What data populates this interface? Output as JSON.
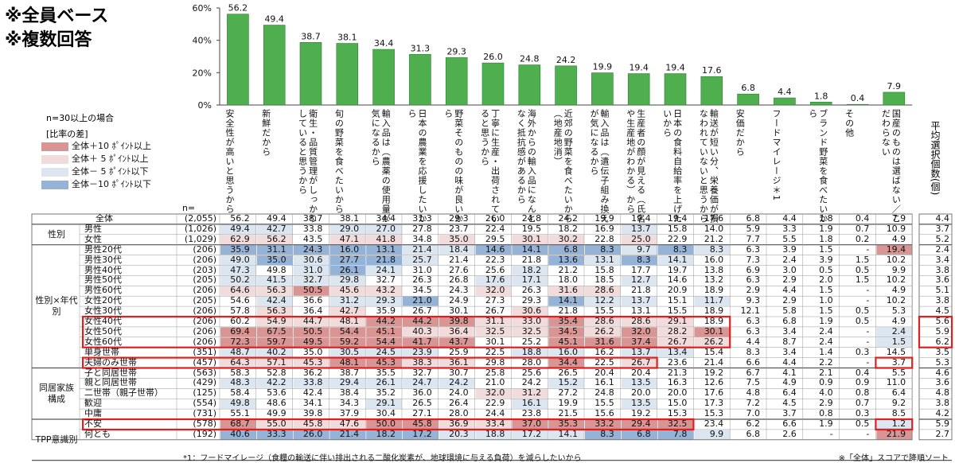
{
  "headline": [
    "※全員ベース",
    "※複数回答"
  ],
  "n_header": "n=",
  "n_limit_note": "n=30以上の場合",
  "legend": {
    "title": "[比率の差]",
    "items": [
      {
        "label": "全体＋10 ﾎﾟｲﾝﾄ以上",
        "color": "#d99594"
      },
      {
        "label": "全体＋ 5 ﾎﾟｲﾝﾄ以上",
        "color": "#f2dcdb"
      },
      {
        "label": "全体－ 5 ﾎﾟｲﾝﾄ以下",
        "color": "#dce6f1"
      },
      {
        "label": "全体－10 ﾎﾟｲﾝﾄ以下",
        "color": "#95b3d7"
      }
    ]
  },
  "avg_title": "平均選択個数(個)",
  "footnote": "*1：フードマイレージ（食糧の輸送に伴い排出される二酸化炭素が、地球環境に与える負荷）を減らしたいから",
  "sort_note": "※「全体」スコアで降順ソート",
  "colors": {
    "bar": "#4faf4f",
    "highlight_box": "#e02020"
  },
  "chart_data": {
    "type": "bar",
    "ylim": [
      0,
      60
    ],
    "yticks": [
      "0%",
      "20%",
      "40%",
      "60%"
    ],
    "categories": [
      "安全性が高いと思うから",
      "新鮮だから",
      "衛生・品質管理がしっかりしていると思うから",
      "旬の野菜を食べたいから",
      "輸入品は農薬の使用量が気になるから",
      "日本の農業を応援したいから",
      "野菜そのものの味が良いから",
      "丁寧に生産・出荷されていると思うから",
      "海外からの輸入品になんとなく抵抗感があるから",
      "近郊の野菜を食べたいから（地産地消）",
      "輸入品は遺伝子組み換えが気になるから",
      "生産者の顔が見える（氏名や生産地がわかる）から",
      "日本の食料自給率を上げたいから",
      "輸送が短い分、栄養価が損なわれていないと思うから",
      "安価だから",
      "フードマイレージ *1",
      "ブランド野菜を食べたいから",
      "その他",
      "国産のものは選ばない/こだわらない"
    ],
    "column_labels": [
      "安全性が高いと思うから",
      "新鮮だから",
      "衛生・品質管理がしっかりしていると思うから",
      "旬の野菜を食べたいから",
      "輸入品は︵農薬の使用量が気になるから",
      "日本の農業を応援したいから",
      "野菜そのものの味が良いから",
      "丁寧に生産・出荷されていると思うから",
      "海外からの輸入品になんとなく抵抗感があるから",
      "近郊の野菜を食べたいから︵地産地消︶",
      "輸入品は︵遺伝子組み換えが気になるから",
      "生産者の顔が見える︵氏名や生産地がわかる︶から",
      "日本の食料自給率を上げたいから",
      "輸送が短い分︑栄養価が損なわれていないと思うから",
      "安価だから",
      "フードマイレージ＊1",
      "ブランド野菜を食べたいから",
      "その他",
      "国産のものは選ばない／こだわらない"
    ],
    "values": [
      56.2,
      49.4,
      38.7,
      38.1,
      34.4,
      31.3,
      29.3,
      26.0,
      24.8,
      24.2,
      19.9,
      19.4,
      19.4,
      17.6,
      6.8,
      4.4,
      1.8,
      0.4,
      7.9
    ],
    "value_labels": [
      "56.2",
      "49.4",
      "38.7",
      "38.1",
      "34.4",
      "31.3",
      "29.3",
      "26.0",
      "24.8",
      "24.2",
      "19.9",
      "19.4",
      "19.4",
      "17.6",
      "6.8",
      "4.4",
      "1.8",
      "0.4",
      "7.9"
    ]
  },
  "table": {
    "groups": [
      {
        "label": "",
        "rows": [
          0
        ]
      },
      {
        "label": "性別",
        "rows": [
          1,
          2
        ]
      },
      {
        "label": "性別×年代別",
        "rows": [
          3,
          4,
          5,
          6,
          7,
          8,
          9,
          10,
          11,
          12,
          13,
          14
        ]
      },
      {
        "label": "同居家族構成",
        "rows": [
          15,
          16,
          17,
          18,
          19
        ]
      },
      {
        "label": "TPP意識別",
        "rows": [
          20,
          21,
          22,
          23
        ]
      }
    ],
    "rows": [
      {
        "label": "全体",
        "n": "(2,055)",
        "v": [
          "56.2",
          "49.4",
          "38.7",
          "38.1",
          "34.4",
          "31.3",
          "29.3",
          "26.0",
          "24.8",
          "24.2",
          "19.9",
          "19.4",
          "19.4",
          "17.6",
          "6.8",
          "4.4",
          "1.8",
          "0.4",
          "7.9"
        ],
        "c": [
          "",
          "",
          "",
          "",
          "",
          "",
          "",
          "",
          "",
          "",
          "",
          "",
          "",
          "",
          "",
          "",
          "",
          "",
          ""
        ],
        "avg": "4.4"
      },
      {
        "label": "男性",
        "n": "(1,026)",
        "v": [
          "49.4",
          "42.7",
          "33.8",
          "29.0",
          "27.0",
          "27.8",
          "23.7",
          "22.4",
          "19.5",
          "18.2",
          "16.9",
          "13.7",
          "15.8",
          "14.0",
          "5.9",
          "3.3",
          "1.9",
          "0.7",
          "10.9"
        ],
        "c": [
          "lb",
          "lb",
          "",
          "lb",
          "lb",
          "",
          "",
          "",
          "",
          "",
          "",
          "lb",
          "",
          "",
          "",
          "",
          "",
          "",
          ""
        ],
        "avg": "3.7"
      },
      {
        "label": "女性",
        "n": "(1,029)",
        "v": [
          "62.9",
          "56.2",
          "43.5",
          "47.1",
          "41.8",
          "34.8",
          "35.0",
          "29.5",
          "30.1",
          "30.2",
          "22.8",
          "25.0",
          "22.9",
          "21.2",
          "7.7",
          "5.5",
          "1.8",
          "0.2",
          "4.9"
        ],
        "c": [
          "lp",
          "lp",
          "",
          "lp",
          "lp",
          "",
          "lp",
          "",
          "lp",
          "lp",
          "",
          "lp",
          "",
          "",
          "",
          "",
          "",
          "",
          ""
        ],
        "avg": "5.2"
      },
      {
        "label": "男性20代",
        "n": "(206)",
        "v": [
          "35.9",
          "31.1",
          "24.3",
          "16.0",
          "13.1",
          "21.4",
          "18.4",
          "14.6",
          "14.1",
          "6.8",
          "8.3",
          "9.7",
          "8.3",
          "8.3",
          "6.3",
          "3.9",
          "1.5",
          "-",
          "19.4"
        ],
        "c": [
          "db",
          "db",
          "db",
          "db",
          "db",
          "lb",
          "lb",
          "db",
          "db",
          "db",
          "db",
          "lb",
          "db",
          "lb",
          "",
          "",
          "",
          "",
          "dp"
        ],
        "avg": "2.4"
      },
      {
        "label": "男性30代",
        "n": "(206)",
        "v": [
          "49.0",
          "35.0",
          "30.6",
          "27.7",
          "21.8",
          "25.7",
          "21.4",
          "22.3",
          "21.8",
          "13.6",
          "13.1",
          "8.3",
          "14.1",
          "16.0",
          "7.3",
          "2.4",
          "3.9",
          "1.5",
          "10.2"
        ],
        "c": [
          "lb",
          "db",
          "lb",
          "db",
          "db",
          "lb",
          "",
          "",
          "",
          "db",
          "lb",
          "db",
          "lb",
          "",
          "",
          "",
          "",
          "",
          ""
        ],
        "avg": "3.4"
      },
      {
        "label": "男性40代",
        "n": "(203)",
        "v": [
          "47.3",
          "49.8",
          "31.0",
          "26.1",
          "24.1",
          "31.0",
          "27.6",
          "25.6",
          "18.2",
          "21.2",
          "15.8",
          "17.7",
          "19.7",
          "13.8",
          "6.9",
          "3.0",
          "0.5",
          "0.5",
          "9.9"
        ],
        "c": [
          "lb",
          "",
          "lb",
          "db",
          "lb",
          "",
          "",
          "",
          "lb",
          "",
          "",
          "",
          "",
          "",
          "",
          "",
          "",
          "",
          ""
        ],
        "avg": "3.8"
      },
      {
        "label": "男性50代",
        "n": "(205)",
        "v": [
          "50.2",
          "41.5",
          "32.7",
          "29.8",
          "32.7",
          "26.3",
          "26.8",
          "17.6",
          "17.1",
          "18.0",
          "18.5",
          "12.7",
          "14.6",
          "13.2",
          "6.3",
          "2.9",
          "2.0",
          "1.5",
          "10.2"
        ],
        "c": [
          "lb",
          "lb",
          "lb",
          "lb",
          "",
          "",
          "",
          "lb",
          "lb",
          "",
          "",
          "lb",
          "",
          "",
          "",
          "",
          "",
          "",
          ""
        ],
        "avg": "3.6"
      },
      {
        "label": "男性60代",
        "n": "(206)",
        "v": [
          "64.6",
          "56.3",
          "50.5",
          "45.6",
          "43.2",
          "34.5",
          "24.3",
          "32.0",
          "26.3",
          "31.6",
          "28.6",
          "21.8",
          "20.9",
          "18.9",
          "2.9",
          "4.4",
          "1.5",
          "-",
          "4.9"
        ],
        "c": [
          "lp",
          "lp",
          "dp",
          "lp",
          "lp",
          "",
          "",
          "lp",
          "",
          "lp",
          "lp",
          "",
          "",
          "",
          "",
          "",
          "",
          "",
          ""
        ],
        "avg": "5.1"
      },
      {
        "label": "女性20代",
        "n": "(205)",
        "v": [
          "54.6",
          "42.4",
          "36.6",
          "31.2",
          "29.3",
          "21.0",
          "24.9",
          "27.3",
          "29.3",
          "14.1",
          "12.2",
          "13.7",
          "15.1",
          "11.7",
          "9.3",
          "2.9",
          "1.0",
          "-",
          "10.2"
        ],
        "c": [
          "",
          "lb",
          "",
          "lb",
          "lb",
          "db",
          "",
          "",
          "",
          "db",
          "lb",
          "lb",
          "",
          "lb",
          "",
          "",
          "",
          "",
          ""
        ],
        "avg": "3.8"
      },
      {
        "label": "女性30代",
        "n": "(206)",
        "v": [
          "57.8",
          "56.3",
          "36.4",
          "42.7",
          "35.9",
          "26.7",
          "30.1",
          "26.7",
          "30.6",
          "21.8",
          "15.5",
          "13.1",
          "15.5",
          "18.9",
          "12.1",
          "5.8",
          "1.5",
          "0.5",
          "5.3"
        ],
        "c": [
          "",
          "lp",
          "",
          "lp",
          "",
          "",
          "",
          "",
          "lp",
          "",
          "",
          "",
          "",
          "",
          "",
          "",
          "",
          "",
          ""
        ],
        "avg": "4.5"
      },
      {
        "label": "女性40代",
        "n": "(206)",
        "v": [
          "60.2",
          "54.9",
          "44.7",
          "48.1",
          "44.2",
          "44.2",
          "39.8",
          "31.1",
          "33.0",
          "35.4",
          "28.6",
          "28.6",
          "29.1",
          "18.9",
          "6.3",
          "6.8",
          "1.9",
          "0.5",
          "4.9"
        ],
        "c": [
          "",
          "lp",
          "lp",
          "lp",
          "dp",
          "dp",
          "dp",
          "lp",
          "lp",
          "dp",
          "lp",
          "lp",
          "lp",
          "",
          "",
          "",
          "",
          "",
          ""
        ],
        "avg": "5.6"
      },
      {
        "label": "女性50代",
        "n": "(206)",
        "v": [
          "69.4",
          "67.5",
          "50.5",
          "54.4",
          "45.1",
          "40.3",
          "36.4",
          "32.5",
          "32.5",
          "34.5",
          "26.2",
          "32.0",
          "28.2",
          "30.1",
          "6.3",
          "3.4",
          "2.4",
          "-",
          "2.4"
        ],
        "c": [
          "dp",
          "dp",
          "dp",
          "dp",
          "dp",
          "lp",
          "lp",
          "lp",
          "lp",
          "dp",
          "lp",
          "dp",
          "lp",
          "dp",
          "",
          "",
          "",
          "",
          "lb"
        ],
        "avg": "5.9"
      },
      {
        "label": "女性60代",
        "n": "(206)",
        "v": [
          "72.3",
          "59.7",
          "49.5",
          "59.2",
          "54.4",
          "41.7",
          "43.7",
          "30.1",
          "25.2",
          "45.1",
          "31.6",
          "37.4",
          "26.7",
          "26.2",
          "4.4",
          "8.7",
          "2.4",
          "-",
          "1.5"
        ],
        "c": [
          "dp",
          "dp",
          "dp",
          "dp",
          "dp",
          "dp",
          "dp",
          "",
          "",
          "dp",
          "dp",
          "dp",
          "lp",
          "lp",
          "",
          "",
          "",
          "",
          "lb"
        ],
        "avg": "6.2"
      },
      {
        "label": "単身世帯",
        "n": "(351)",
        "v": [
          "48.7",
          "40.2",
          "35.0",
          "30.5",
          "24.5",
          "23.9",
          "25.9",
          "22.5",
          "18.8",
          "16.0",
          "16.2",
          "13.7",
          "13.4",
          "15.4",
          "8.3",
          "3.4",
          "1.4",
          "0.3",
          "14.5"
        ],
        "c": [
          "lb",
          "lb",
          "",
          "lb",
          "lb",
          "lb",
          "",
          "",
          "lb",
          "lb",
          "",
          "lb",
          "lb",
          "",
          "",
          "",
          "",
          "",
          ""
        ],
        "avg": "3.5"
      },
      {
        "label": "夫婦のみ世帯",
        "n": "(457)",
        "v": [
          "64.3",
          "57.1",
          "45.3",
          "48.1",
          "45.3",
          "38.3",
          "36.1",
          "29.8",
          "28.0",
          "34.4",
          "22.5",
          "26.7",
          "23.6",
          "21.4",
          "6.6",
          "4.4",
          "2.2",
          "-",
          "3.7"
        ],
        "c": [
          "lp",
          "lp",
          "lp",
          "dp",
          "dp",
          "lp",
          "lp",
          "",
          "",
          "dp",
          "",
          "lp",
          "",
          "",
          "",
          "",
          "",
          "",
          ""
        ],
        "avg": "5.3"
      },
      {
        "label": "子と同居世帯",
        "n": "(563)",
        "v": [
          "58.3",
          "52.8",
          "36.2",
          "38.7",
          "35.5",
          "32.7",
          "30.7",
          "25.8",
          "25.6",
          "26.5",
          "20.4",
          "20.4",
          "21.3",
          "19.2",
          "6.7",
          "4.1",
          "2.1",
          "0.4",
          "5.5"
        ],
        "c": [
          "",
          "",
          "",
          "",
          "",
          "",
          "",
          "",
          "",
          "",
          "",
          "",
          "",
          "",
          "",
          "",
          "",
          "",
          ""
        ],
        "avg": "4.6"
      },
      {
        "label": "親と同居世帯",
        "n": "(429)",
        "v": [
          "48.3",
          "42.2",
          "33.8",
          "29.4",
          "26.1",
          "24.7",
          "24.2",
          "21.0",
          "24.2",
          "15.2",
          "16.1",
          "13.5",
          "16.3",
          "12.6",
          "7.5",
          "4.9",
          "0.9",
          "0.9",
          "11.0"
        ],
        "c": [
          "lb",
          "lb",
          "lb",
          "lb",
          "lb",
          "lb",
          "lb",
          "",
          "",
          "lb",
          "",
          "lb",
          "",
          "",
          "",
          "",
          "",
          "",
          ""
        ],
        "avg": "3.6"
      },
      {
        "label": "二世帯（親子世帯）",
        "n": "(125)",
        "v": [
          "58.4",
          "53.6",
          "42.4",
          "38.4",
          "35.2",
          "36.0",
          "24.0",
          "32.0",
          "31.2",
          "27.2",
          "24.8",
          "20.0",
          "20.0",
          "17.6",
          "4.8",
          "6.4",
          "4.0",
          "0.8",
          "6.4"
        ],
        "c": [
          "",
          "",
          "",
          "",
          "",
          "",
          "",
          "lp",
          "lp",
          "",
          "",
          "",
          "",
          "",
          "",
          "",
          "",
          "",
          ""
        ],
        "avg": "4.8"
      },
      {
        "label": "歓迎",
        "n": "(554)",
        "v": [
          "49.8",
          "48.6",
          "34.1",
          "34.3",
          "29.1",
          "26.5",
          "26.4",
          "22.9",
          "16.1",
          "19.9",
          "15.5",
          "13.5",
          "15.0",
          "17.3",
          "7.2",
          "4.5",
          "2.9",
          "0.7",
          "9.2"
        ],
        "c": [
          "lb",
          "",
          "",
          "",
          "lb",
          "",
          "",
          "",
          "lb",
          "",
          "",
          "lb",
          "",
          "",
          "",
          "",
          "",
          "",
          ""
        ],
        "avg": "3.8"
      },
      {
        "label": "中庸",
        "n": "(731)",
        "v": [
          "55.1",
          "49.9",
          "39.8",
          "37.9",
          "30.4",
          "27.1",
          "28.0",
          "24.4",
          "23.8",
          "21.5",
          "15.6",
          "19.2",
          "15.3",
          "15.3",
          "7.0",
          "3.7",
          "0.8",
          "0.3",
          "8.5"
        ],
        "c": [
          "",
          "",
          "",
          "",
          "",
          "",
          "",
          "",
          "",
          "",
          "",
          "",
          "",
          "",
          "",
          "",
          "",
          "",
          ""
        ],
        "avg": "4.2"
      },
      {
        "label": "不安",
        "n": "(578)",
        "v": [
          "68.7",
          "55.0",
          "45.8",
          "47.6",
          "50.0",
          "45.8",
          "36.9",
          "33.4",
          "37.0",
          "35.3",
          "33.2",
          "29.4",
          "32.5",
          "23.4",
          "6.2",
          "6.6",
          "1.9",
          "0.5",
          "1.2"
        ],
        "c": [
          "dp",
          "lp",
          "lp",
          "lp",
          "dp",
          "dp",
          "lp",
          "lp",
          "dp",
          "dp",
          "dp",
          "dp",
          "dp",
          "",
          "",
          "",
          "",
          "",
          "lb"
        ],
        "avg": "5.9"
      },
      {
        "label": "何とも",
        "n": "(192)",
        "v": [
          "40.6",
          "33.3",
          "26.0",
          "21.4",
          "18.2",
          "17.2",
          "20.3",
          "18.8",
          "17.2",
          "14.1",
          "8.3",
          "6.8",
          "7.8",
          "9.9",
          "6.8",
          "2.6",
          "-",
          "-",
          "21.9"
        ],
        "c": [
          "db",
          "db",
          "db",
          "db",
          "db",
          "db",
          "lb",
          "lb",
          "lb",
          "lb",
          "db",
          "db",
          "db",
          "lb",
          "",
          "",
          "",
          "",
          "dp"
        ],
        "avg": "2.7"
      }
    ]
  }
}
